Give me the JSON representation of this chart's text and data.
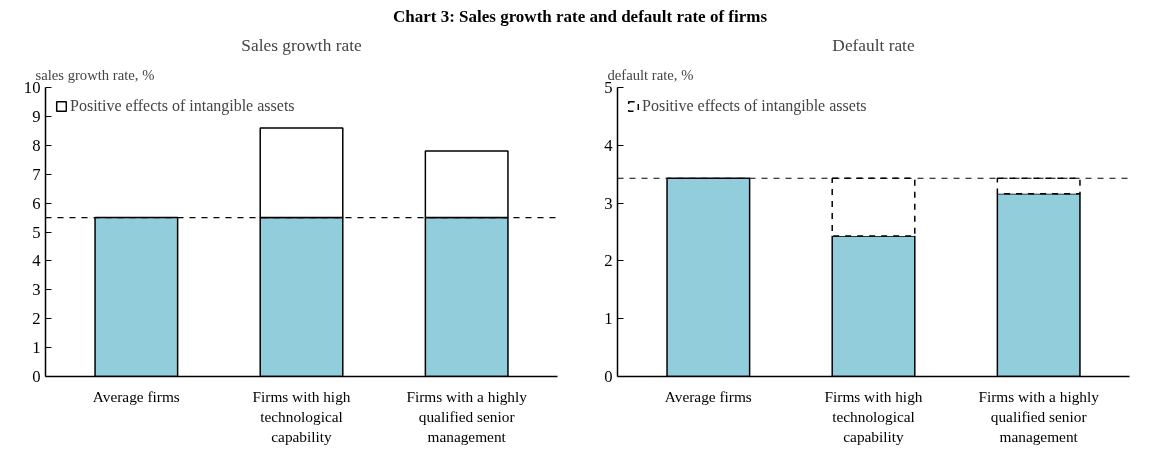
{
  "chart_data": [
    {
      "type": "bar",
      "title": "Chart 3: Sales growth rate and default rate of firms",
      "subtitle": "Sales growth rate",
      "ylabel": "sales growth rate, %",
      "stacked": true,
      "legend": "top left",
      "categories": [
        "Average firms",
        "Firms with high technological capability",
        "Firms with a highly qualified senior management"
      ],
      "series": [
        {
          "color": "#92cddc",
          "values": [
            5.5,
            5.5,
            5.5
          ]
        },
        {
          "name": "Positive effects of intangible assets",
          "color": "#ffffff",
          "values": [
            null,
            3.1,
            2.3
          ]
        }
      ],
      "ylim": [
        0,
        10
      ],
      "yticks": [
        0,
        1,
        2,
        3,
        4,
        5,
        6,
        7,
        8,
        9,
        10
      ],
      "ref_lines": [
        {
          "axis": "y",
          "value": 5.5,
          "line_style": "dashed"
        }
      ]
    },
    {
      "type": "bar",
      "subtitle": "Default rate",
      "ylabel": "default rate, %",
      "stacked": true,
      "legend": "top left",
      "categories": [
        "Average firms",
        "Firms with high technological capability",
        "Firms with a highly qualified senior management"
      ],
      "series": [
        {
          "color": "#92cddc",
          "values": [
            3.43,
            2.43,
            3.16
          ]
        },
        {
          "name": "Positive effects of intangible assets",
          "color": "#ffffff",
          "line_style": "dashed",
          "values": [
            null,
            1.0,
            0.27
          ]
        }
      ],
      "ylim": [
        0,
        5
      ],
      "yticks": [
        0,
        1,
        2,
        3,
        4,
        5
      ],
      "ref_lines": [
        {
          "axis": "y",
          "value": 3.43,
          "line_style": "dashed"
        }
      ]
    }
  ]
}
